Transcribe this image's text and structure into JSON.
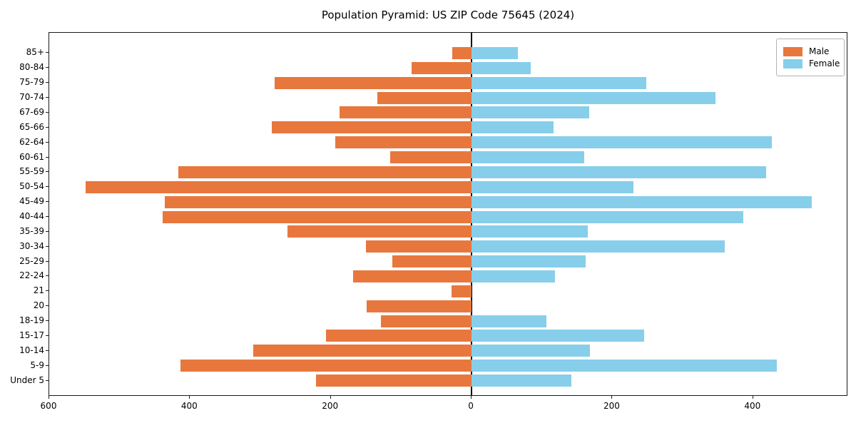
{
  "chart_data": {
    "type": "bar",
    "variant": "population-pyramid",
    "title": "Population Pyramid: US ZIP Code 75645 (2024)",
    "categories": [
      "85+",
      "80-84",
      "75-79",
      "70-74",
      "67-69",
      "65-66",
      "62-64",
      "60-61",
      "55-59",
      "50-54",
      "45-49",
      "40-44",
      "35-39",
      "30-34",
      "25-29",
      "22-24",
      "21",
      "20",
      "18-19",
      "15-17",
      "10-14",
      "5-9",
      "Under 5"
    ],
    "series": [
      {
        "name": "Male",
        "side": "left",
        "color": "#e8773d",
        "values": [
          27,
          85,
          280,
          134,
          188,
          284,
          194,
          116,
          417,
          548,
          436,
          439,
          262,
          150,
          113,
          168,
          28,
          149,
          129,
          207,
          310,
          414,
          221
        ]
      },
      {
        "name": "Female",
        "side": "right",
        "color": "#87ceeb",
        "values": [
          66,
          84,
          248,
          347,
          167,
          116,
          427,
          160,
          418,
          230,
          483,
          386,
          165,
          360,
          162,
          118,
          0,
          0,
          106,
          245,
          168,
          434,
          142
        ]
      }
    ],
    "x_axis": {
      "xlim": [
        -600,
        535
      ],
      "tick_values": [
        -600,
        -400,
        -200,
        0,
        200,
        400
      ],
      "tick_labels": [
        "600",
        "400",
        "200",
        "0",
        "200",
        "400"
      ]
    },
    "y_axis": {
      "label": ""
    },
    "legend": {
      "position": "upper-right",
      "entries": [
        "Male",
        "Female"
      ]
    },
    "grid": false,
    "center_line_at": 0,
    "colors": {
      "male": "#e8773d",
      "female": "#87ceeb",
      "spine": "#1a1a1a",
      "background": "#ffffff"
    }
  }
}
